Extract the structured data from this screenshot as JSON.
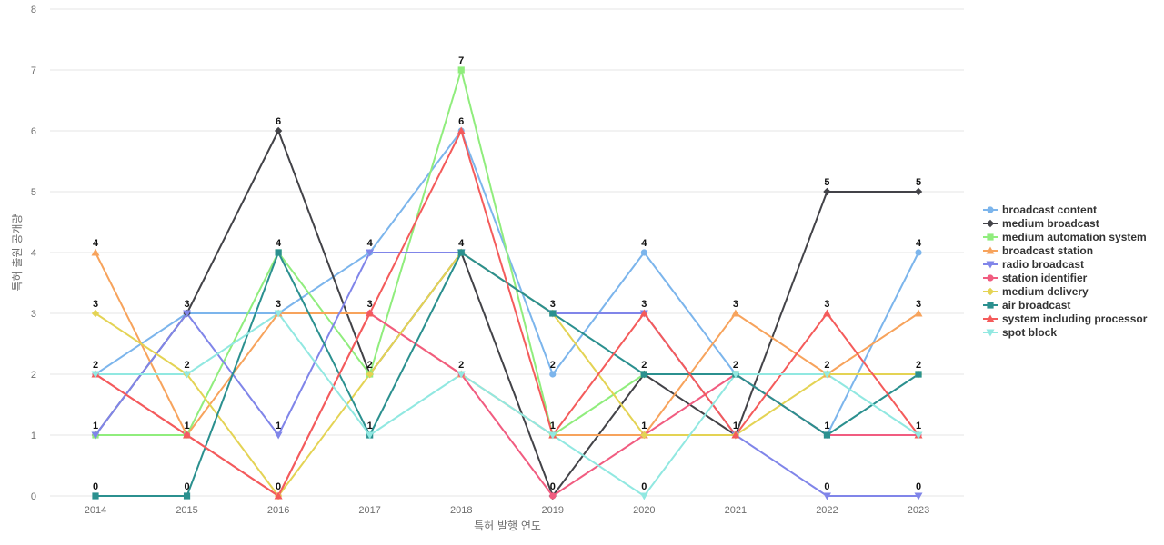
{
  "chart_data": {
    "type": "line",
    "title": "",
    "xlabel": "특허 발행 연도",
    "ylabel": "특허 출원 공개량",
    "ylim": [
      0,
      8
    ],
    "yticks": [
      "0",
      "1",
      "2",
      "3",
      "4",
      "5",
      "6",
      "7",
      "8"
    ],
    "categories": [
      "2014",
      "2015",
      "2016",
      "2017",
      "2018",
      "2019",
      "2020",
      "2021",
      "2022",
      "2023"
    ],
    "grid": true,
    "legend_position": "right",
    "data_labels": [
      [
        "4",
        "3",
        "2",
        "1",
        "0"
      ],
      [
        "3",
        "2",
        "1",
        "0"
      ],
      [
        "6",
        "4",
        "3",
        "1",
        "0"
      ],
      [
        "4",
        "3",
        "2",
        "1"
      ],
      [
        "7",
        "6",
        "4",
        "2"
      ],
      [
        "3",
        "2",
        "1",
        "0"
      ],
      [
        "4",
        "3",
        "2",
        "1",
        "0"
      ],
      [
        "3",
        "2",
        "1"
      ],
      [
        "5",
        "3",
        "2",
        "1",
        "0"
      ],
      [
        "5",
        "4",
        "3",
        "2",
        "1",
        "0"
      ]
    ],
    "series": [
      {
        "name": "broadcast content",
        "color": "#7cb5ec",
        "marker": "circle",
        "values": [
          2,
          3,
          3,
          4,
          6,
          2,
          4,
          2,
          1,
          4
        ]
      },
      {
        "name": "medium broadcast",
        "color": "#434348",
        "marker": "diamond",
        "values": [
          1,
          3,
          6,
          2,
          4,
          0,
          2,
          1,
          5,
          5
        ]
      },
      {
        "name": "medium automation system",
        "color": "#90ed7d",
        "marker": "square",
        "values": [
          1,
          1,
          4,
          2,
          7,
          1,
          2,
          2,
          2,
          2
        ]
      },
      {
        "name": "broadcast station",
        "color": "#f7a35c",
        "marker": "triangle",
        "values": [
          4,
          1,
          3,
          3,
          2,
          1,
          1,
          3,
          2,
          3
        ]
      },
      {
        "name": "radio broadcast",
        "color": "#8085e9",
        "marker": "triangle-down",
        "values": [
          1,
          3,
          1,
          4,
          4,
          3,
          3,
          1,
          0,
          0
        ]
      },
      {
        "name": "station identifier",
        "color": "#f15c80",
        "marker": "circle",
        "values": [
          2,
          1,
          0,
          3,
          2,
          0,
          1,
          2,
          1,
          1
        ]
      },
      {
        "name": "medium delivery",
        "color": "#e4d354",
        "marker": "diamond",
        "values": [
          3,
          2,
          0,
          2,
          4,
          3,
          1,
          1,
          2,
          2
        ]
      },
      {
        "name": "air broadcast",
        "color": "#2b908f",
        "marker": "square",
        "values": [
          0,
          0,
          4,
          1,
          4,
          3,
          2,
          2,
          1,
          2
        ]
      },
      {
        "name": "system including processor",
        "color": "#f45b5b",
        "marker": "triangle",
        "values": [
          2,
          1,
          0,
          3,
          6,
          1,
          3,
          1,
          3,
          1
        ]
      },
      {
        "name": "spot block",
        "color": "#91e8e1",
        "marker": "triangle-down",
        "values": [
          2,
          2,
          3,
          1,
          2,
          1,
          0,
          2,
          2,
          1
        ]
      }
    ]
  }
}
